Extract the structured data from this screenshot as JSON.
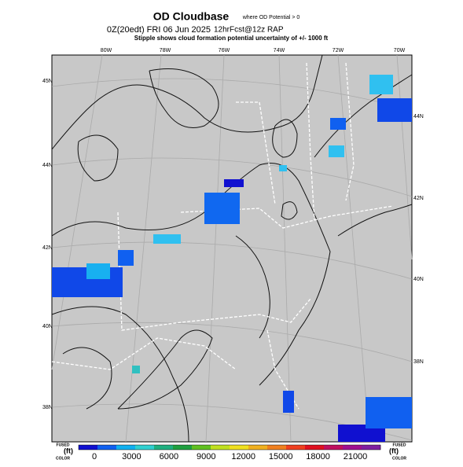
{
  "header": {
    "title": "OD Cloudbase",
    "title_note": "where OD Potential > 0",
    "valid": "0Z(20edt) FRI 06 Jun 2025",
    "run": "12hrFcst@12z RAP",
    "subtitle": "Stipple shows cloud formation potential uncertainty of +/- 1000 ft"
  },
  "map": {
    "top_labels": [
      "80W",
      "78W",
      "76W",
      "74W",
      "72W",
      "70W"
    ],
    "left_labels": [
      "45N",
      "44N",
      "42N",
      "40N",
      "38N"
    ],
    "right_labels": [
      "44N",
      "42N",
      "40N",
      "38N"
    ]
  },
  "colorbar": {
    "left_label": "FUSED",
    "right_label": "FUSED",
    "unit": "(ft)",
    "left_note": "COLOR",
    "right_note": "COLOR",
    "ticks": [
      0,
      3000,
      6000,
      9000,
      12000,
      15000,
      18000,
      21000
    ],
    "colors": [
      "#1010d0",
      "#1060f0",
      "#10b0f0",
      "#30d0d0",
      "#20b080",
      "#20a040",
      "#60c020",
      "#c0e020",
      "#f0e020",
      "#f0b020",
      "#f08020",
      "#f04020",
      "#e01020",
      "#c01060",
      "#a01090",
      "#8020a0"
    ]
  }
}
